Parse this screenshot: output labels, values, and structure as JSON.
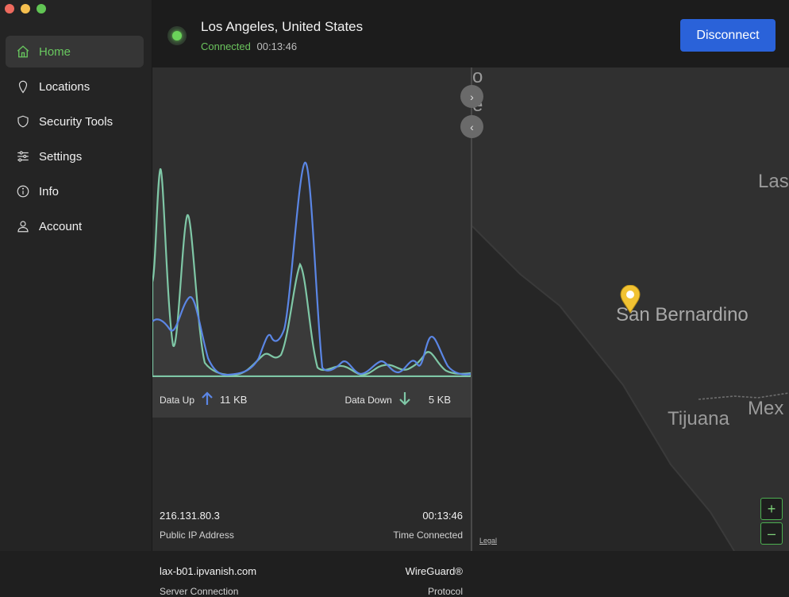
{
  "sidebar": {
    "items": [
      {
        "label": "Home",
        "icon": "home-icon"
      },
      {
        "label": "Locations",
        "icon": "location-pin-icon"
      },
      {
        "label": "Security Tools",
        "icon": "shield-icon"
      },
      {
        "label": "Settings",
        "icon": "sliders-icon"
      },
      {
        "label": "Info",
        "icon": "info-icon"
      },
      {
        "label": "Account",
        "icon": "user-icon"
      }
    ]
  },
  "header": {
    "location": "Los Angeles, United States",
    "status": "Connected",
    "elapsed": "00:13:46",
    "disconnect_label": "Disconnect"
  },
  "traffic": {
    "up_label": "Data Up",
    "up_value": "11 KB",
    "down_label": "Data Down",
    "down_value": "5 KB"
  },
  "details": {
    "ip": "216.131.80.3",
    "ip_label": "Public IP Address",
    "time": "00:13:46",
    "time_label": "Time Connected",
    "server": "lax-b01.ipvanish.com",
    "server_label": "Server Connection",
    "protocol": "WireGuard®",
    "protocol_label": "Protocol"
  },
  "map": {
    "labels": [
      "o",
      "e",
      "Las",
      "San Bernardino",
      "Tijuana",
      "Mex"
    ],
    "legal": "Legal",
    "zoom_in": "+",
    "zoom_out": "–"
  },
  "colors": {
    "accent": "#2a62d9",
    "connected": "#6bc35d",
    "series_up": "#5b86e5",
    "series_down": "#7fc7a6",
    "pin": "#f1c232"
  }
}
